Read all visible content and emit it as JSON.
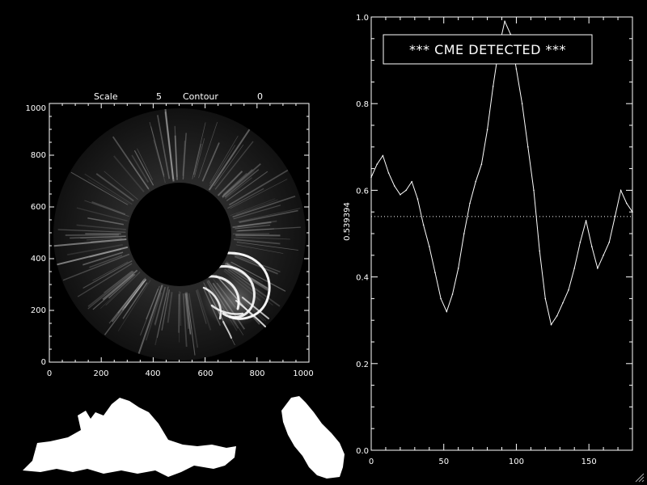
{
  "image_panel": {
    "header": {
      "scale_label": "Scale",
      "scale_value": "5",
      "contour_label": "Contour",
      "contour_value": "0"
    },
    "x_ticks": [
      "0",
      "200",
      "400",
      "600",
      "800",
      "1000"
    ],
    "y_ticks": [
      "0",
      "200",
      "400",
      "600",
      "800",
      "1000"
    ]
  },
  "alert": {
    "text": "*** CME DETECTED ***"
  },
  "chart_data": {
    "type": "line",
    "title": "",
    "xlabel": "",
    "ylabel": "0.539394",
    "xlim": [
      0,
      180
    ],
    "ylim": [
      0.0,
      1.0
    ],
    "x_ticks": [
      "0",
      "50",
      "100",
      "150"
    ],
    "y_ticks": [
      "0.0",
      "0.2",
      "0.4",
      "0.6",
      "0.8",
      "1.0"
    ],
    "threshold": 0.539394,
    "grid": false,
    "series": [
      {
        "x": [
          0,
          4,
          8,
          12,
          16,
          20,
          24,
          28,
          32,
          36,
          40,
          44,
          48,
          52,
          56,
          60,
          64,
          68,
          72,
          76,
          80,
          84,
          88,
          92,
          96,
          100,
          104,
          108,
          112,
          116,
          120,
          124,
          128,
          132,
          136,
          140,
          144,
          148,
          152,
          156,
          160,
          164,
          168,
          172,
          176,
          180
        ],
        "values": [
          0.63,
          0.66,
          0.68,
          0.64,
          0.61,
          0.59,
          0.6,
          0.62,
          0.58,
          0.52,
          0.47,
          0.41,
          0.35,
          0.32,
          0.36,
          0.42,
          0.5,
          0.57,
          0.62,
          0.66,
          0.74,
          0.84,
          0.93,
          0.99,
          0.96,
          0.88,
          0.8,
          0.7,
          0.6,
          0.46,
          0.35,
          0.29,
          0.31,
          0.34,
          0.37,
          0.42,
          0.48,
          0.53,
          0.47,
          0.42,
          0.45,
          0.48,
          0.54,
          0.6,
          0.57,
          0.55
        ]
      }
    ]
  },
  "colors": {
    "background": "#000000",
    "foreground": "#ffffff"
  },
  "icons": {
    "resize": "resize-grip-icon"
  }
}
